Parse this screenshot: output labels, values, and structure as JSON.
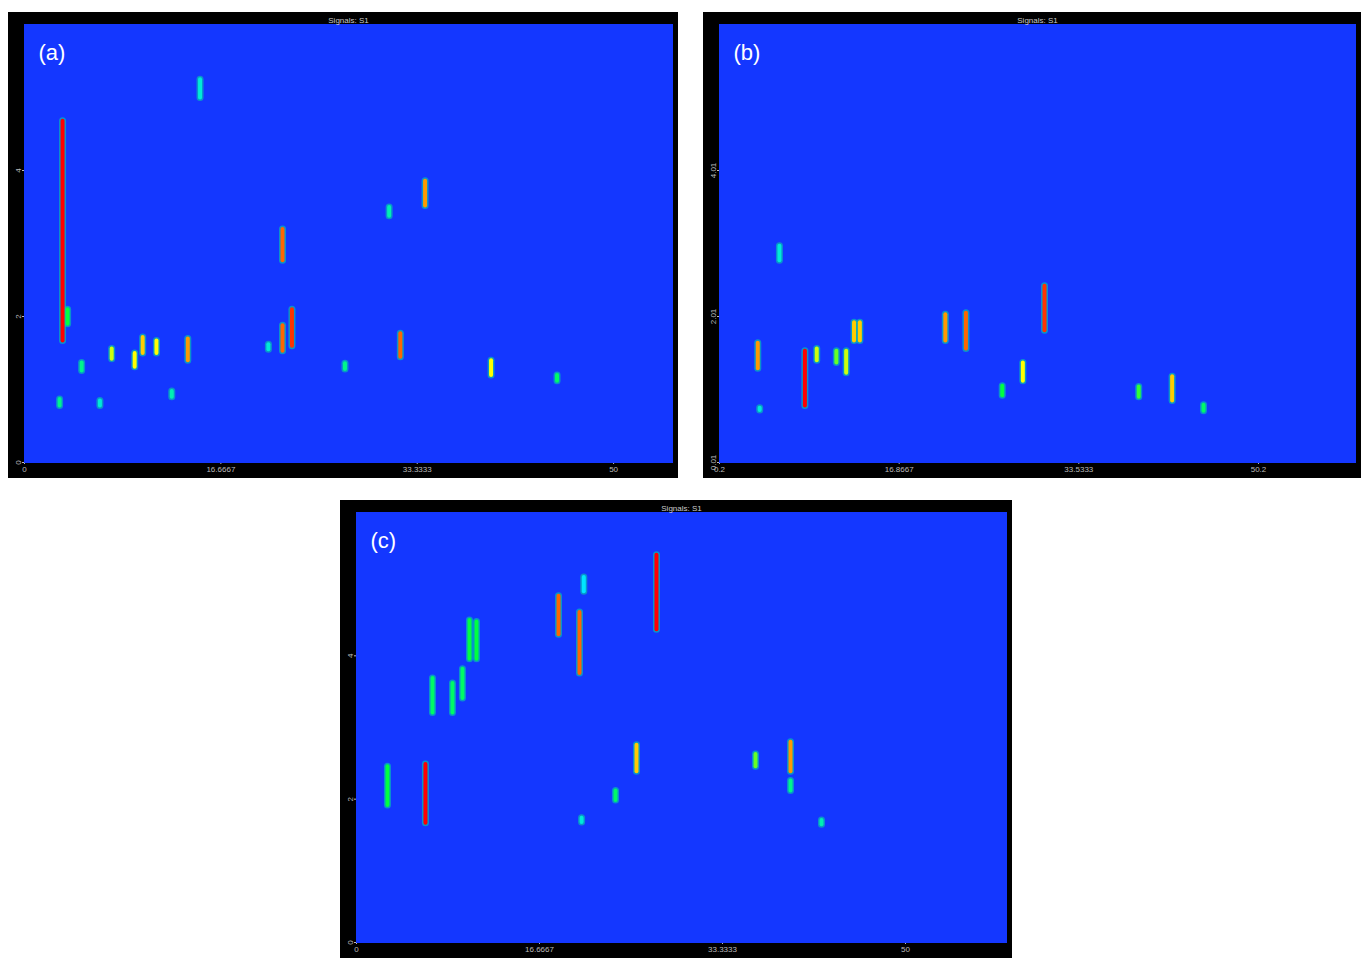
{
  "chart_data": [
    {
      "type": "contour",
      "title": "Signals: S1",
      "panel": "(a)",
      "xlim": [
        0,
        55
      ],
      "ylim": [
        0,
        6
      ],
      "xticks": [
        0,
        16.6667,
        33.3333,
        50
      ],
      "yticks": [
        0,
        2,
        4
      ],
      "zlim": [
        0,
        1
      ],
      "spots": {
        "x": [
          3.23,
          3.66,
          7.4,
          9.35,
          10.03,
          11.2,
          13.86,
          14.9,
          21.9,
          21.9,
          22.7,
          27.2,
          30.95,
          31.9,
          34.0,
          39.6,
          45.2,
          2.98,
          4.85,
          6.4,
          12.5,
          20.7
        ],
        "y_start": [
          1.67,
          1.9,
          1.42,
          1.31,
          1.5,
          1.5,
          1.4,
          5.0,
          2.77,
          1.53,
          1.6,
          1.28,
          3.38,
          1.45,
          3.52,
          1.2,
          1.12,
          0.78,
          1.26,
          0.78,
          0.9,
          1.55
        ],
        "y_end": [
          4.68,
          2.1,
          1.56,
          1.5,
          1.72,
          1.67,
          1.7,
          5.25,
          3.2,
          1.88,
          2.1,
          1.36,
          3.5,
          1.77,
          3.86,
          1.4,
          1.2,
          0.87,
          1.37,
          0.85,
          0.98,
          1.62
        ],
        "z": [
          1,
          0.5,
          0.7,
          0.75,
          0.8,
          0.75,
          0.85,
          0.3,
          0.9,
          0.9,
          0.95,
          0.4,
          0.35,
          0.9,
          0.85,
          0.75,
          0.45,
          0.4,
          0.4,
          0.3,
          0.35,
          0.3
        ]
      }
    },
    {
      "type": "contour",
      "title": "Signals: S1",
      "panel": "(b)",
      "xlim": [
        0.2,
        59.2
      ],
      "ylim": [
        0.01,
        6.01
      ],
      "xticks": [
        0.2,
        16.8667,
        33.5333,
        50.2
      ],
      "yticks": [
        0.01,
        2.01,
        4.01
      ],
      "zlim": [
        0,
        1
      ],
      "spots": {
        "x": [
          3.75,
          8.12,
          9.22,
          11.04,
          11.95,
          12.68,
          13.22,
          21.15,
          23.06,
          26.43,
          28.34,
          30.35,
          39.09,
          42.19,
          45.1,
          5.76,
          3.93
        ],
        "y_start": [
          1.3,
          0.79,
          1.41,
          1.38,
          1.24,
          1.68,
          1.68,
          1.68,
          1.57,
          0.93,
          1.13,
          1.82,
          0.91,
          0.86,
          0.72,
          2.78,
          0.73
        ],
        "y_end": [
          1.65,
          1.54,
          1.57,
          1.54,
          1.54,
          1.93,
          1.93,
          2.04,
          2.06,
          1.06,
          1.38,
          2.43,
          1.05,
          1.19,
          0.8,
          2.98,
          0.76
        ],
        "z": [
          0.85,
          1,
          0.7,
          0.6,
          0.7,
          0.8,
          0.8,
          0.85,
          0.9,
          0.5,
          0.75,
          0.95,
          0.55,
          0.8,
          0.45,
          0.3,
          0.3
        ]
      }
    },
    {
      "type": "contour",
      "title": "Signals: S1",
      "panel": "(c)",
      "xlim": [
        0,
        59.2
      ],
      "ylim": [
        0,
        6
      ],
      "xticks": [
        0,
        16.6667,
        33.3333,
        50
      ],
      "yticks": [
        0,
        2,
        4
      ],
      "zlim": [
        0,
        1
      ],
      "spots": {
        "x": [
          2.82,
          6.28,
          6.92,
          8.74,
          9.65,
          10.29,
          10.93,
          18.4,
          20.31,
          27.32,
          23.59,
          25.5,
          36.34,
          39.53,
          39.53,
          42.35,
          20.7,
          20.5
        ],
        "y_start": [
          1.92,
          1.67,
          3.21,
          3.21,
          3.41,
          3.96,
          3.96,
          4.3,
          3.76,
          4.37,
          1.99,
          2.39,
          2.46,
          2.39,
          2.12,
          1.65,
          4.9,
          1.68
        ],
        "y_end": [
          2.46,
          2.49,
          3.69,
          3.62,
          3.82,
          4.5,
          4.48,
          4.84,
          4.61,
          5.41,
          2.12,
          2.76,
          2.63,
          2.8,
          2.26,
          1.71,
          5.1,
          1.74
        ],
        "z": [
          0.5,
          1,
          0.45,
          0.45,
          0.45,
          0.5,
          0.5,
          0.9,
          0.9,
          1,
          0.45,
          0.8,
          0.6,
          0.85,
          0.4,
          0.35,
          0.25,
          0.3
        ]
      }
    }
  ]
}
